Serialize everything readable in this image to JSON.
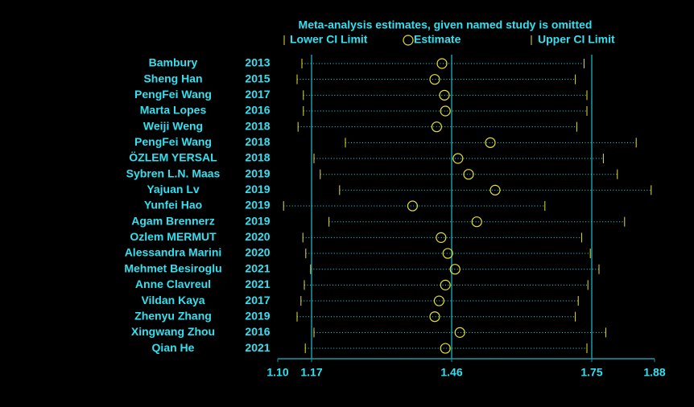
{
  "chart_data": {
    "type": "forest",
    "title": "Meta-analysis estimates, given named study is omitted",
    "legend": {
      "lower": "Lower CI Limit",
      "estimate": "Estimate",
      "upper": "Upper CI Limit"
    },
    "categories": [
      "Bambury",
      "Sheng Han",
      "PengFei Wang",
      "Marta Lopes",
      "Weiji Weng",
      "PengFei Wang",
      "ÖZLEM YERSAL",
      "Sybren L.N. Maas",
      "Yajuan Lv",
      "Yunfei Hao",
      "Agam Brennerz",
      "Ozlem MERMUT",
      "Alessandra Marini",
      "Mehmet Besiroglu",
      "Anne Clavreul",
      "Vildan Kaya",
      "Zhenyu Zhang",
      "Xingwang Zhou",
      "Qian He"
    ],
    "years": [
      "2013",
      "2015",
      "2017",
      "2016",
      "2018",
      "2018",
      "2018",
      "2019",
      "2019",
      "2019",
      "2019",
      "2020",
      "2020",
      "2021",
      "2021",
      "2017",
      "2019",
      "2016",
      "2021"
    ],
    "lower": [
      1.15,
      1.14,
      1.153,
      1.153,
      1.142,
      1.24,
      1.175,
      1.188,
      1.228,
      1.112,
      1.206,
      1.152,
      1.158,
      1.168,
      1.155,
      1.148,
      1.14,
      1.175,
      1.157
    ],
    "estimate": [
      1.44,
      1.425,
      1.445,
      1.447,
      1.429,
      1.54,
      1.473,
      1.495,
      1.55,
      1.379,
      1.512,
      1.438,
      1.452,
      1.467,
      1.447,
      1.434,
      1.425,
      1.477,
      1.447
    ],
    "upper": [
      1.734,
      1.716,
      1.74,
      1.74,
      1.719,
      1.842,
      1.774,
      1.803,
      1.873,
      1.653,
      1.818,
      1.729,
      1.747,
      1.765,
      1.742,
      1.722,
      1.716,
      1.779,
      1.74
    ],
    "xlim": [
      1.1,
      1.88
    ],
    "xticks": [
      {
        "value": 1.1,
        "label": "1.10"
      },
      1.17,
      1.46,
      1.75,
      1.88
    ],
    "reflines": [
      1.17,
      1.46,
      1.75
    ],
    "text_color": "#33e0f0",
    "mark_color": "#e8e030",
    "line_color": "#139aa8"
  }
}
